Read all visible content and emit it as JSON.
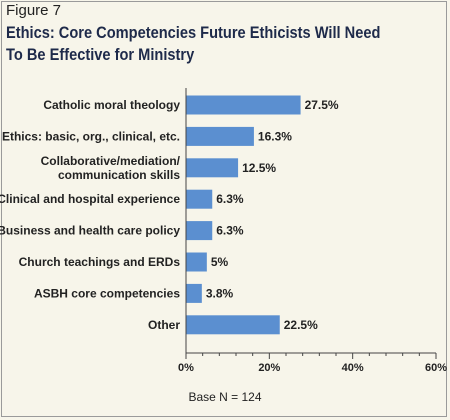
{
  "figure_label": "Figure 7",
  "title_lines": [
    "Ethics: Core Competencies Future Ethicists Will Need",
    "To Be Effective for Ministry"
  ],
  "footnote": "Base N = 124",
  "colors": {
    "bar": "#5b8fd0",
    "background": "#f7f5ea",
    "axis": "#444444"
  },
  "chart_data": {
    "type": "bar",
    "orientation": "horizontal",
    "categories": [
      [
        "Catholic moral theology"
      ],
      [
        "Ethics: basic, org., clinical, etc."
      ],
      [
        "Collaborative/mediation/",
        "communication skills"
      ],
      [
        "Clinical and hospital experience"
      ],
      [
        "Business and health care policy"
      ],
      [
        "Church teachings and ERDs"
      ],
      [
        "ASBH core competencies"
      ],
      [
        "Other"
      ]
    ],
    "values": [
      27.5,
      16.3,
      12.5,
      6.3,
      6.3,
      5,
      3.8,
      22.5
    ],
    "value_labels": [
      "27.5%",
      "16.3%",
      "12.5%",
      "6.3%",
      "6.3%",
      "5%",
      "3.8%",
      "22.5%"
    ],
    "xlim": [
      0,
      60
    ],
    "xticks": [
      0,
      20,
      40,
      60
    ],
    "xtick_labels": [
      "0%",
      "20%",
      "40%",
      "60%"
    ],
    "minor_ticks_per_major": 4,
    "grid": false
  }
}
